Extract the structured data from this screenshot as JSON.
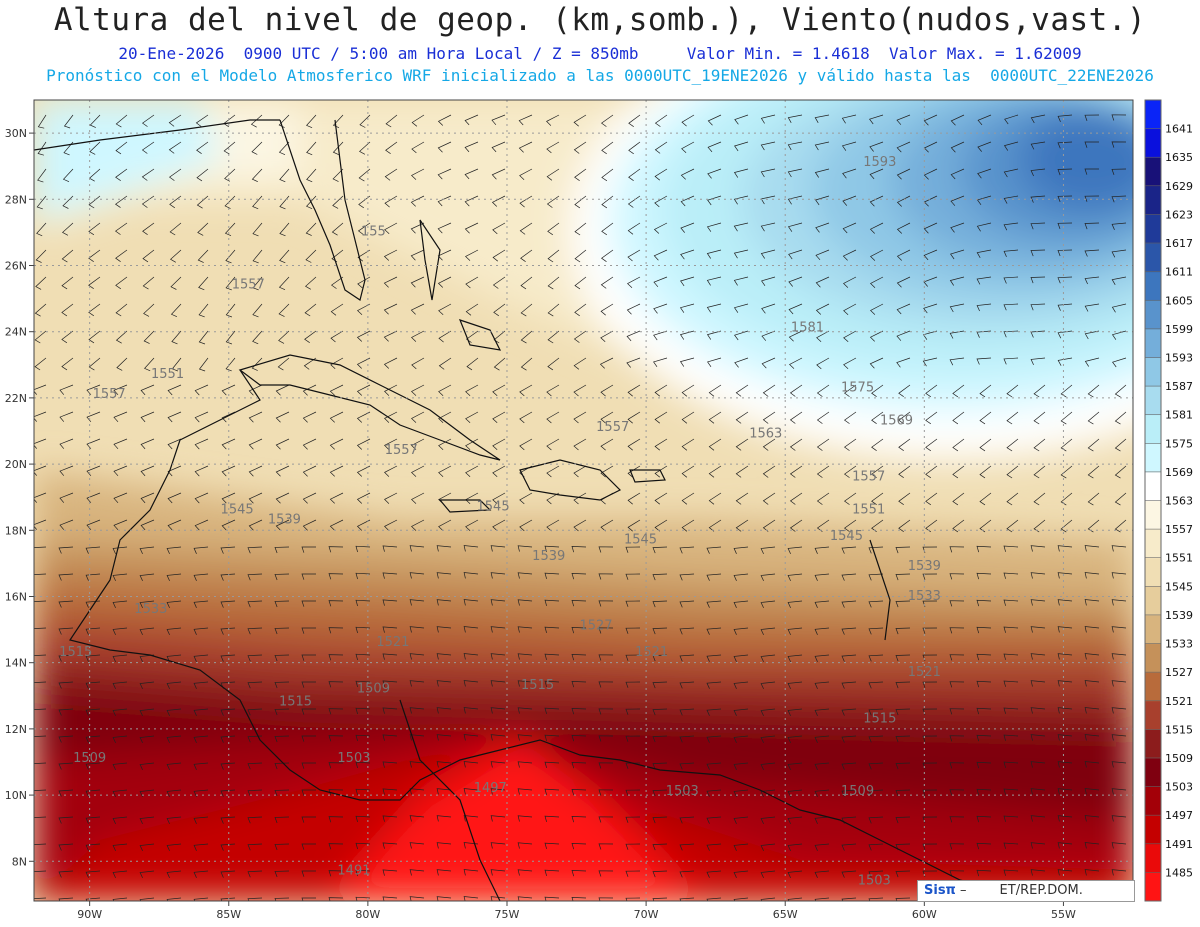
{
  "title": "Altura del nivel de geop. (km,somb.), Viento(nudos,vast.)",
  "subtitle1": "20-Ene-2026  0900 UTC / 5:00 am Hora Local / Z = 850mb     Valor Min. = 1.4618  Valor Max. = 1.62009",
  "subtitle2": "Pronóstico con el Modelo Atmosferico WRF inicializado a las 0000UTC_19ENE2026 y válido hasta las  0000UTC_22ENE2026",
  "map": {
    "lon_range": [
      -92,
      -52.5
    ],
    "lat_range": [
      6.8,
      31
    ],
    "lon_ticks": [
      "90W",
      "85W",
      "80W",
      "75W",
      "70W",
      "65W",
      "60W",
      "55W"
    ],
    "lat_ticks": [
      "8N",
      "10N",
      "12N",
      "14N",
      "16N",
      "18N",
      "20N",
      "22N",
      "24N",
      "26N",
      "28N",
      "30N"
    ],
    "grid": true
  },
  "colorbar": {
    "levels": [
      "1485",
      "1491",
      "1497",
      "1503",
      "1509",
      "1515",
      "1521",
      "1527",
      "1533",
      "1539",
      "1545",
      "1551",
      "1557",
      "1563",
      "1569",
      "1575",
      "1581",
      "1587",
      "1593",
      "1599",
      "1605",
      "1611",
      "1617",
      "1623",
      "1629",
      "1635",
      "1641"
    ],
    "colors": [
      "#ff1414",
      "#ea0a0a",
      "#c40000",
      "#a30008",
      "#7f0010",
      "#8c1c1c",
      "#a8402d",
      "#b86b3b",
      "#c5915a",
      "#d8b47e",
      "#e6cd9c",
      "#f0deb4",
      "#f7ebca",
      "#fcf6e3",
      "#ffffff",
      "#cff7ff",
      "#baeef8",
      "#a8dcef",
      "#8fc8e6",
      "#74aeda",
      "#5993cc",
      "#3d76be",
      "#2b56a9",
      "#1f3a99",
      "#1a2488",
      "#181178",
      "#0a10dd",
      "#0a24f7"
    ]
  },
  "contour_labels": [
    {
      "text": "1557",
      "lon": -84.3,
      "lat": 25.3
    },
    {
      "text": "1551",
      "lon": -87.2,
      "lat": 22.6
    },
    {
      "text": "1557",
      "lon": -89.3,
      "lat": 22.0
    },
    {
      "text": "1557",
      "lon": -78.8,
      "lat": 20.3
    },
    {
      "text": "1545",
      "lon": -84.7,
      "lat": 18.5
    },
    {
      "text": "1545",
      "lon": -75.5,
      "lat": 18.6
    },
    {
      "text": "1539",
      "lon": -73.5,
      "lat": 17.1
    },
    {
      "text": "1545",
      "lon": -70.2,
      "lat": 17.6
    },
    {
      "text": "1557",
      "lon": -71.2,
      "lat": 21.0
    },
    {
      "text": "1563",
      "lon": -65.7,
      "lat": 20.8
    },
    {
      "text": "1569",
      "lon": -61.0,
      "lat": 21.2
    },
    {
      "text": "1575",
      "lon": -62.4,
      "lat": 22.2
    },
    {
      "text": "1581",
      "lon": -64.2,
      "lat": 24.0
    },
    {
      "text": "1593",
      "lon": -61.6,
      "lat": 29.0
    },
    {
      "text": "1557",
      "lon": -62.0,
      "lat": 19.5
    },
    {
      "text": "1551",
      "lon": -62.0,
      "lat": 18.5
    },
    {
      "text": "1545",
      "lon": -62.8,
      "lat": 17.7
    },
    {
      "text": "1539",
      "lon": -60.0,
      "lat": 16.8
    },
    {
      "text": "1533",
      "lon": -60.0,
      "lat": 15.9
    },
    {
      "text": "1527",
      "lon": -71.8,
      "lat": 15.0
    },
    {
      "text": "1521",
      "lon": -69.8,
      "lat": 14.2
    },
    {
      "text": "1521",
      "lon": -79.1,
      "lat": 14.5
    },
    {
      "text": "1521",
      "lon": -60.0,
      "lat": 13.6
    },
    {
      "text": "1515",
      "lon": -73.9,
      "lat": 13.2
    },
    {
      "text": "1515",
      "lon": -61.6,
      "lat": 12.2
    },
    {
      "text": "1509",
      "lon": -79.8,
      "lat": 13.1
    },
    {
      "text": "1515",
      "lon": -82.6,
      "lat": 12.7
    },
    {
      "text": "1515",
      "lon": -90.5,
      "lat": 14.2
    },
    {
      "text": "1509",
      "lon": -90.0,
      "lat": 11.0
    },
    {
      "text": "1503",
      "lon": -80.5,
      "lat": 11.0
    },
    {
      "text": "1497",
      "lon": -75.6,
      "lat": 10.1
    },
    {
      "text": "1503",
      "lon": -68.7,
      "lat": 10.0
    },
    {
      "text": "1509",
      "lon": -62.4,
      "lat": 10.0
    },
    {
      "text": "1491",
      "lon": -80.5,
      "lat": 7.6
    },
    {
      "text": "1503",
      "lon": -61.8,
      "lat": 7.3
    },
    {
      "text": "155",
      "lon": -79.8,
      "lat": 26.9
    },
    {
      "text": "1533",
      "lon": -87.8,
      "lat": 15.5
    },
    {
      "text": "1539",
      "lon": -83.0,
      "lat": 18.2
    }
  ],
  "logo": {
    "brand": "Sisπ",
    "text": "ET/REP.DOM."
  }
}
